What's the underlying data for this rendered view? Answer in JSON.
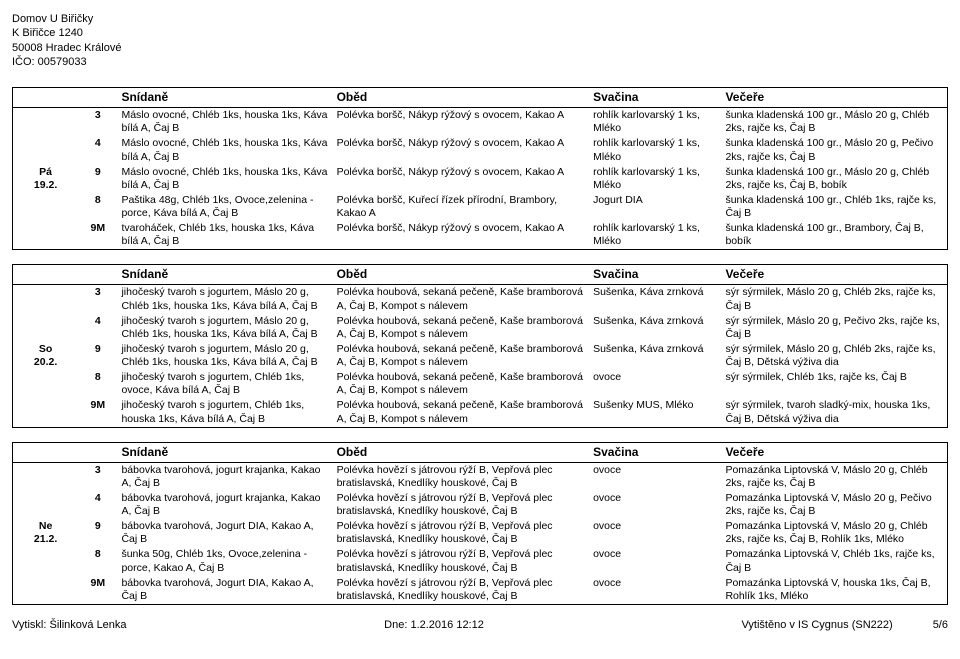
{
  "header": {
    "line1": "Domov U Biřičky",
    "line2": "K Biřičce 1240",
    "line3": "50008 Hradec Králové",
    "line4": "IČO: 00579033"
  },
  "columns": {
    "breakfast": "Snídaně",
    "lunch": "Oběd",
    "snack": "Svačina",
    "dinner": "Večeře"
  },
  "days": [
    {
      "label_top": "Pá",
      "label_bottom": "19.2.",
      "rows": [
        {
          "n": "3",
          "br": "Máslo ovocné, Chléb 1ks, houska 1ks, Káva bílá A, Čaj B",
          "lu": "Polévka boršč, Nákyp rýžový s ovocem, Kakao A",
          "sn": "rohlík karlovarský 1 ks, Mléko",
          "di": "šunka kladenská 100 gr., Máslo 20 g, Chléb 2ks, rajče ks, Čaj B"
        },
        {
          "n": "4",
          "br": "Máslo ovocné, Chléb 1ks, houska 1ks, Káva bílá A, Čaj B",
          "lu": "Polévka boršč, Nákyp rýžový s ovocem, Kakao A",
          "sn": "rohlík karlovarský 1 ks, Mléko",
          "di": "šunka kladenská 100 gr., Máslo 20 g, Pečivo 2ks, rajče ks, Čaj B"
        },
        {
          "n": "9",
          "br": "Máslo ovocné, Chléb 1ks, houska 1ks, Káva bílá A, Čaj B",
          "lu": "Polévka boršč, Nákyp rýžový s ovocem, Kakao A",
          "sn": "rohlík karlovarský 1 ks, Mléko",
          "di": "šunka kladenská 100 gr., Máslo 20 g, Chléb 2ks, rajče ks, Čaj B, bobík"
        },
        {
          "n": "8",
          "br": "Paštika 48g, Chléb 1ks, Ovoce,zelenina - porce, Káva bílá A, Čaj B",
          "lu": "Polévka boršč, Kuřecí řízek přírodní, Brambory, Kakao A",
          "sn": "Jogurt DIA",
          "di": "šunka kladenská 100 gr., Chléb 1ks, rajče ks, Čaj B"
        },
        {
          "n": "9M",
          "br": "tvaroháček, Chléb 1ks, houska 1ks, Káva bílá A, Čaj B",
          "lu": "Polévka boršč, Nákyp rýžový s ovocem, Kakao A",
          "sn": "rohlík karlovarský 1 ks, Mléko",
          "di": "šunka kladenská 100 gr., Brambory, Čaj B, bobík"
        }
      ]
    },
    {
      "label_top": "So",
      "label_bottom": "20.2.",
      "rows": [
        {
          "n": "3",
          "br": "jihočeský tvaroh s jogurtem, Máslo 20 g, Chléb 1ks, houska 1ks, Káva bílá A, Čaj B",
          "lu": "Polévka houbová, sekaná pečeně, Kaše bramborová A, Čaj B, Kompot s nálevem",
          "sn": "Sušenka, Káva zrnková",
          "di": "sýr sýrmilek, Máslo 20 g, Chléb 2ks, rajče ks, Čaj B"
        },
        {
          "n": "4",
          "br": "jihočeský tvaroh s jogurtem, Máslo 20 g, Chléb 1ks, houska 1ks, Káva bílá A, Čaj B",
          "lu": "Polévka houbová, sekaná pečeně, Kaše bramborová A, Čaj B, Kompot s nálevem",
          "sn": "Sušenka, Káva zrnková",
          "di": "sýr sýrmilek, Máslo 20 g, Pečivo 2ks, rajče ks, Čaj B"
        },
        {
          "n": "9",
          "br": "jihočeský tvaroh s jogurtem, Máslo 20 g, Chléb 1ks, houska 1ks, Káva bílá A, Čaj B",
          "lu": "Polévka houbová, sekaná pečeně, Kaše bramborová A, Čaj B, Kompot s nálevem",
          "sn": "Sušenka, Káva zrnková",
          "di": "sýr sýrmilek, Máslo 20 g, Chléb 2ks, rajče ks, Čaj B, Dětská výživa dia"
        },
        {
          "n": "8",
          "br": "jihočeský tvaroh s jogurtem, Chléb 1ks, ovoce, Káva bílá A, Čaj B",
          "lu": "Polévka houbová, sekaná pečeně, Kaše bramborová A, Čaj B, Kompot s nálevem",
          "sn": "ovoce",
          "di": "sýr sýrmilek, Chléb 1ks, rajče ks, Čaj B"
        },
        {
          "n": "9M",
          "br": "jihočeský tvaroh s jogurtem, Chléb 1ks, houska 1ks, Káva bílá A, Čaj B",
          "lu": "Polévka houbová, sekaná pečeně, Kaše bramborová A, Čaj B, Kompot s nálevem",
          "sn": "Sušenky MUS, Mléko",
          "di": "sýr sýrmilek, tvaroh sladký-mix, houska 1ks, Čaj B, Dětská výživa dia"
        }
      ]
    },
    {
      "label_top": "Ne",
      "label_bottom": "21.2.",
      "rows": [
        {
          "n": "3",
          "br": "bábovka tvarohová, jogurt krajanka, Kakao A, Čaj B",
          "lu": "Polévka hovězí s játrovou rýží B, Vepřová plec bratislavská, Knedlíky houskové, Čaj B",
          "sn": "ovoce",
          "di": "Pomazánka Liptovská V, Máslo 20 g, Chléb 2ks, rajče ks, Čaj B"
        },
        {
          "n": "4",
          "br": "bábovka tvarohová, jogurt krajanka, Kakao A, Čaj B",
          "lu": "Polévka hovězí s játrovou rýží B, Vepřová plec bratislavská, Knedlíky houskové, Čaj B",
          "sn": "ovoce",
          "di": "Pomazánka Liptovská V, Máslo 20 g, Pečivo 2ks, rajče ks, Čaj B"
        },
        {
          "n": "9",
          "br": "bábovka tvarohová, Jogurt DIA, Kakao A, Čaj B",
          "lu": "Polévka hovězí s játrovou rýží B, Vepřová plec bratislavská, Knedlíky houskové, Čaj B",
          "sn": "ovoce",
          "di": "Pomazánka Liptovská V, Máslo 20 g, Chléb 2ks, rajče ks, Čaj B, Rohlík 1ks, Mléko"
        },
        {
          "n": "8",
          "br": "šunka 50g, Chléb 1ks, Ovoce,zelenina - porce, Kakao A, Čaj B",
          "lu": "Polévka hovězí s játrovou rýží B, Vepřová plec bratislavská, Knedlíky houskové, Čaj B",
          "sn": "ovoce",
          "di": "Pomazánka Liptovská V, Chléb 1ks, rajče ks, Čaj B"
        },
        {
          "n": "9M",
          "br": "bábovka tvarohová, Jogurt DIA, Kakao A, Čaj B",
          "lu": "Polévka hovězí s játrovou rýží B, Vepřová plec bratislavská, Knedlíky houskové, Čaj B",
          "sn": "ovoce",
          "di": "Pomazánka Liptovská V, houska 1ks, Čaj B, Rohlík 1ks, Mléko"
        }
      ]
    }
  ],
  "footer": {
    "left": "Vytiskl: Šilinková Lenka",
    "center": "Dne: 1.2.2016 12:12",
    "right_app": "Vytištěno v IS Cygnus (SN222)",
    "page": "5/6"
  }
}
